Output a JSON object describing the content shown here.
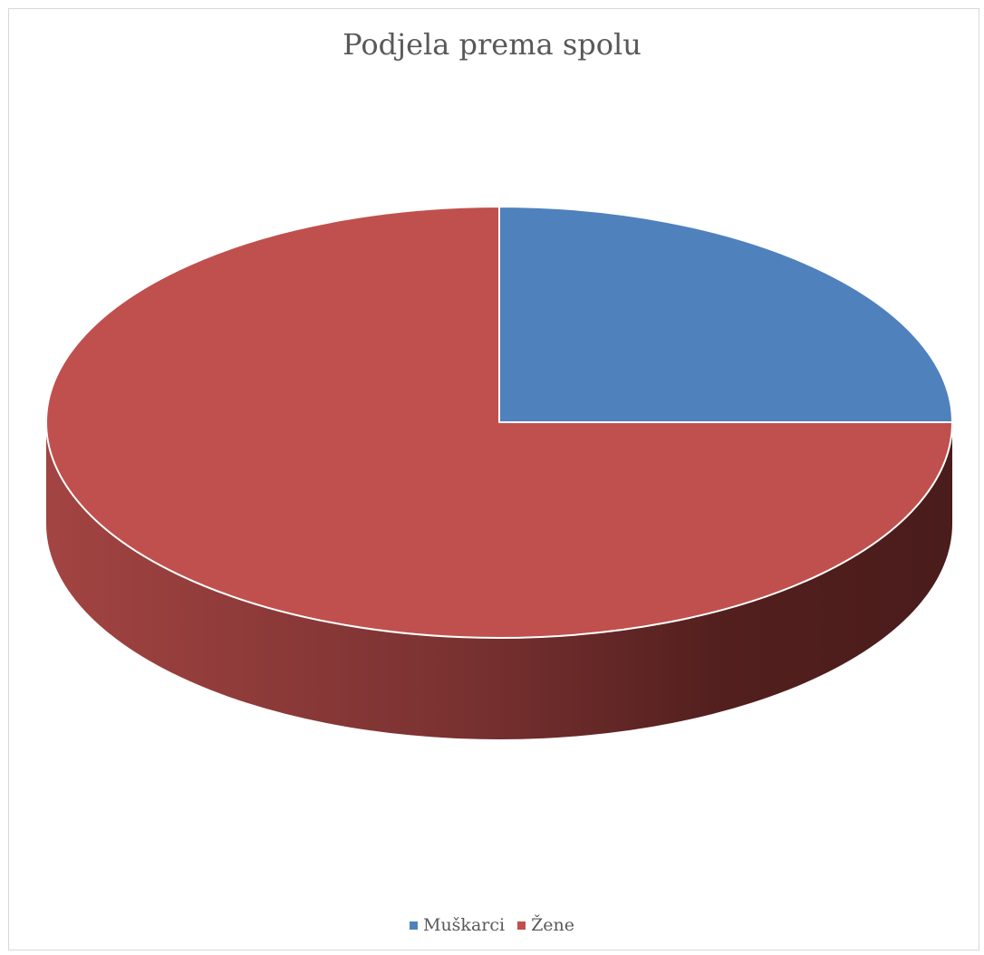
{
  "chart_data": {
    "type": "pie",
    "title": "Podjela prema spolu",
    "labels": [
      "Muškarci",
      "Žene"
    ],
    "values": [
      25,
      75
    ],
    "colors": [
      "#4f81bd",
      "#c0504d"
    ],
    "style": "3d",
    "legend_position": "bottom"
  }
}
